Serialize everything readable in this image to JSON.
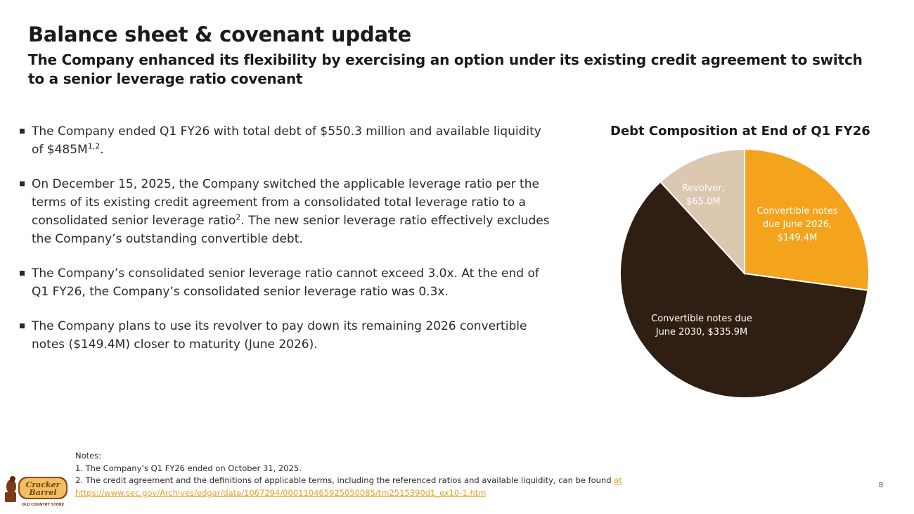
{
  "header": {
    "title": "Balance sheet & covenant update",
    "subtitle": "The Company enhanced its flexibility by exercising an option under its existing credit agreement to switch to a senior leverage ratio covenant"
  },
  "bullets": [
    {
      "text": "The Company ended Q1 FY26 with total debt of $550.3 million and available liquidity of $485M",
      "sup": "1,2",
      "after": "."
    },
    {
      "text": "On December 15, 2025, the Company switched the applicable leverage ratio per the terms of its existing credit agreement from a consolidated total leverage ratio to a consolidated senior leverage ratio",
      "sup": "2",
      "after": ". The new senior leverage ratio effectively excludes the Company’s outstanding convertible debt."
    },
    {
      "text": "The Company’s consolidated senior leverage ratio cannot exceed 3.0x.  At the end of Q1 FY26, the Company’s consolidated senior leverage ratio was 0.3x."
    },
    {
      "text": "The Company plans to use its revolver to pay down its remaining 2026 convertible notes ($149.4M) closer to maturity (June 2026)."
    }
  ],
  "chart_data": {
    "type": "pie",
    "title": "Debt Composition at End of Q1 FY26",
    "units": "$M",
    "slices": [
      {
        "label_lines": [
          "Convertible notes",
          "due June 2026,",
          "$149.4M"
        ],
        "name": "Convertible notes due June 2026",
        "value": 149.4,
        "color": "#f4a31c",
        "text_color": "#ffffff"
      },
      {
        "label_lines": [
          "Convertible notes due",
          "June 2030, $335.9M"
        ],
        "name": "Convertible notes due June 2030",
        "value": 335.9,
        "color": "#2e1f12",
        "text_color": "#ffffff"
      },
      {
        "label_lines": [
          "Revolver,",
          "$65.0M"
        ],
        "name": "Revolver",
        "value": 65.0,
        "color": "#dcc7b1",
        "text_color": "#ffffff"
      }
    ]
  },
  "notes": {
    "heading": "Notes:",
    "note1": "1.  The Company’s Q1 FY26 ended on October 31, 2025.",
    "note2": "2. The credit agreement and the definitions of applicable terms, including the referenced ratios and available liquidity, can be found ",
    "link_word": "at",
    "url": "https://www.sec.gov/Archives/edgar/data/1067294/000110465925050085/tm2515390d1_ex10-1.htm"
  },
  "footer": {
    "page_number": "8",
    "logo_text": "Cracker Barrel",
    "logo_tagline": "OLD COUNTRY STORE"
  },
  "colors": {
    "accent": "#f4a31c",
    "dark": "#2e1f12",
    "tan": "#dcc7b1",
    "link": "#e8a020"
  }
}
